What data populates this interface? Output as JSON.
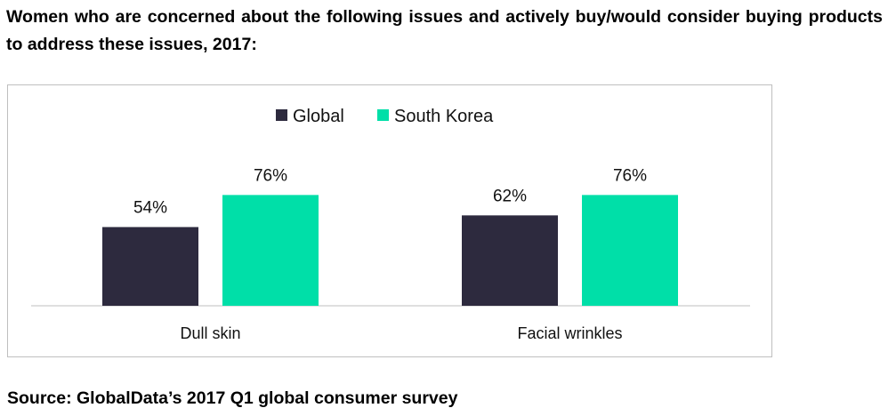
{
  "heading": "Women who are concerned about the following issues and actively buy/would consider buying products to address these issues, 2017:",
  "source": "Source: GlobalData’s 2017 Q1 global consumer survey",
  "chart_data": {
    "type": "bar",
    "categories": [
      "Dull skin",
      "Facial wrinkles"
    ],
    "series": [
      {
        "name": "Global",
        "values": [
          54,
          62
        ],
        "labels": [
          "54%",
          "62%"
        ],
        "color": "#2d2a3e"
      },
      {
        "name": "South Korea",
        "values": [
          76,
          76
        ],
        "labels": [
          "76%",
          "76%"
        ],
        "color": "#00dfa8"
      }
    ],
    "ylim": [
      0,
      100
    ],
    "unit": "%",
    "grid": false,
    "legend": "top-center",
    "title": "",
    "xlabel": "",
    "ylabel": ""
  }
}
